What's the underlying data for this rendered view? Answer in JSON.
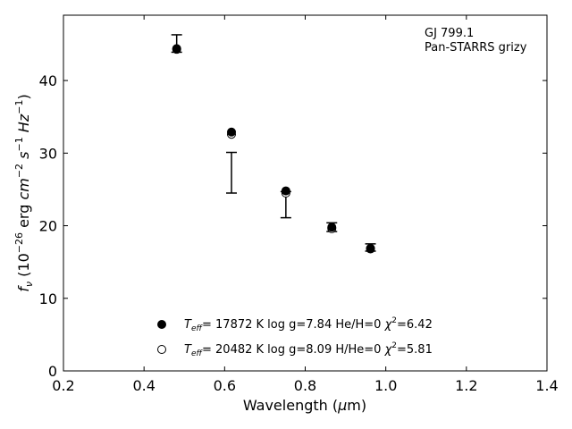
{
  "chart_data": {
    "type": "scatter",
    "title": "",
    "xlabel": "Wavelength (μm)",
    "ylabel": "f_ν (10^−26 erg cm^−2 s^−1 Hz^−1)",
    "xlim": [
      0.2,
      1.4
    ],
    "ylim": [
      0,
      49
    ],
    "xticks": [
      0.2,
      0.4,
      0.6,
      0.8,
      1.0,
      1.2,
      1.4
    ],
    "xtick_labels": [
      "0.2",
      "0.4",
      "0.6",
      "0.8",
      "1.0",
      "1.2",
      "1.4"
    ],
    "yticks": [
      0,
      10,
      20,
      30,
      40
    ],
    "ytick_labels": [
      "0",
      "10",
      "20",
      "30",
      "40"
    ],
    "grid": false,
    "legend_position": "lower-center",
    "annotation_lines": [
      "GJ 799.1",
      "Pan-STARRS grizy"
    ],
    "observed": {
      "x": [
        0.481,
        0.617,
        0.752,
        0.866,
        0.962
      ],
      "y": [
        45.1,
        27.3,
        22.9,
        19.8,
        17.0
      ],
      "yerr": [
        1.2,
        2.8,
        1.8,
        0.6,
        0.5
      ]
    },
    "series": [
      {
        "name": "T_eff= 17872 K  log g=7.84  He/H=0  χ²=6.42",
        "marker": "filled",
        "x": [
          0.481,
          0.617,
          0.752,
          0.866,
          0.962
        ],
        "y": [
          44.4,
          32.9,
          24.8,
          19.8,
          16.9
        ]
      },
      {
        "name": "T_eff= 20482 K  log g=8.09  H/He=0  χ²=5.81",
        "marker": "open",
        "x": [
          0.481,
          0.617,
          0.752,
          0.866,
          0.962
        ],
        "y": [
          44.3,
          32.6,
          24.5,
          19.6,
          16.8
        ]
      }
    ]
  }
}
